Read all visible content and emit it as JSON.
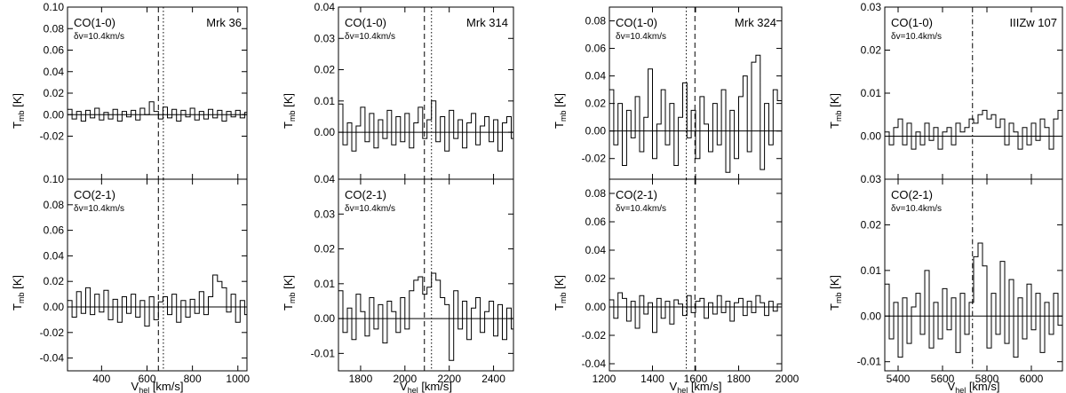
{
  "chart_data": [
    {
      "type": "line",
      "title": "Mrk 36",
      "xlabel": "Vhel [km/s]",
      "ylabel": "Tmb [K]",
      "xlim": [
        250,
        1040
      ],
      "xticks": [
        "400",
        "600",
        "800",
        "1000"
      ],
      "xtick_values": [
        400,
        600,
        800,
        1000
      ],
      "vlines": [
        {
          "x": 650,
          "style": "dashed"
        },
        {
          "x": 672,
          "style": "dotted"
        }
      ],
      "panels": [
        {
          "line": "CO(1-0)",
          "resolution": "δv=10.4km/s",
          "ylim": [
            -0.06,
            0.1
          ],
          "yticks": [
            "0.10",
            "0.08",
            "0.06",
            "0.04",
            "0.02",
            "0.00",
            "-0.02"
          ],
          "ytick_values": [
            0.1,
            0.08,
            0.06,
            0.04,
            0.02,
            0.0,
            -0.02
          ],
          "x": [
            250,
            270,
            290,
            310,
            330,
            350,
            370,
            390,
            410,
            430,
            450,
            470,
            490,
            510,
            530,
            550,
            570,
            590,
            610,
            630,
            650,
            670,
            690,
            710,
            730,
            750,
            770,
            790,
            810,
            830,
            850,
            870,
            890,
            910,
            930,
            950,
            970,
            990,
            1010,
            1030
          ],
          "values": [
            0.005,
            -0.004,
            0.003,
            -0.006,
            0.004,
            -0.003,
            0.006,
            -0.005,
            0.002,
            -0.004,
            0.005,
            -0.006,
            0.003,
            -0.002,
            0.004,
            -0.005,
            0.006,
            0.0,
            0.012,
            0.003,
            -0.004,
            0.007,
            -0.003,
            0.005,
            -0.006,
            0.004,
            -0.002,
            0.006,
            -0.005,
            0.003,
            -0.004,
            0.005,
            -0.003,
            0.004,
            -0.006,
            0.003,
            -0.002,
            0.004,
            -0.003,
            0.002
          ]
        },
        {
          "line": "CO(2-1)",
          "resolution": "δv=10.4km/s",
          "ylim": [
            -0.05,
            0.1
          ],
          "yticks": [
            "0.10",
            "0.08",
            "0.06",
            "0.04",
            "0.02",
            "0.00",
            "-0.02",
            "-0.04"
          ],
          "ytick_values": [
            0.1,
            0.08,
            0.06,
            0.04,
            0.02,
            0.0,
            -0.02,
            -0.04
          ],
          "x": [
            250,
            270,
            290,
            310,
            330,
            350,
            370,
            390,
            410,
            430,
            450,
            470,
            490,
            510,
            530,
            550,
            570,
            590,
            610,
            630,
            650,
            670,
            690,
            710,
            730,
            750,
            770,
            790,
            810,
            830,
            850,
            870,
            890,
            910,
            930,
            950,
            970,
            990,
            1010,
            1030
          ],
          "values": [
            0.005,
            -0.008,
            0.012,
            -0.005,
            0.015,
            -0.006,
            0.01,
            -0.004,
            0.013,
            -0.01,
            0.006,
            -0.012,
            0.008,
            -0.005,
            0.01,
            -0.008,
            0.005,
            -0.015,
            0.008,
            -0.01,
            0.004,
            0.008,
            -0.006,
            0.01,
            -0.012,
            0.005,
            -0.008,
            0.006,
            -0.005,
            0.012,
            -0.006,
            0.008,
            0.025,
            0.02,
            0.015,
            -0.004,
            0.01,
            -0.012,
            0.005,
            -0.006
          ]
        }
      ]
    },
    {
      "type": "line",
      "title": "Mrk 314",
      "xlabel": "Vhel [km/s]",
      "ylabel": "Tmb [K]",
      "xlim": [
        1700,
        2490
      ],
      "xticks": [
        "1800",
        "2000",
        "2200",
        "2400"
      ],
      "xtick_values": [
        1800,
        2000,
        2200,
        2400
      ],
      "vlines": [
        {
          "x": 2088,
          "style": "dashed"
        },
        {
          "x": 2120,
          "style": "dotted"
        }
      ],
      "panels": [
        {
          "line": "CO(1-0)",
          "resolution": "δv=10.4km/s",
          "ylim": [
            -0.015,
            0.04
          ],
          "yticks": [
            "0.04",
            "0.03",
            "0.02",
            "0.01",
            "0.00"
          ],
          "ytick_values": [
            0.04,
            0.03,
            0.02,
            0.01,
            0.0
          ],
          "x": [
            1700,
            1720,
            1740,
            1760,
            1780,
            1800,
            1820,
            1840,
            1860,
            1880,
            1900,
            1920,
            1940,
            1960,
            1980,
            2000,
            2020,
            2040,
            2060,
            2080,
            2100,
            2120,
            2140,
            2160,
            2180,
            2200,
            2220,
            2240,
            2260,
            2280,
            2300,
            2320,
            2340,
            2360,
            2380,
            2400,
            2420,
            2440,
            2460,
            2480
          ],
          "values": [
            0.009,
            -0.004,
            0.003,
            -0.006,
            0.002,
            0.008,
            -0.003,
            0.006,
            -0.005,
            0.004,
            -0.002,
            0.007,
            -0.004,
            0.005,
            -0.003,
            0.006,
            -0.005,
            0.003,
            0.008,
            -0.002,
            0.004,
            0.01,
            -0.003,
            0.005,
            -0.006,
            0.007,
            -0.002,
            0.004,
            -0.005,
            0.003,
            0.006,
            -0.004,
            0.002,
            0.005,
            -0.003,
            0.004,
            -0.006,
            0.003,
            0.005,
            -0.002
          ]
        },
        {
          "line": "CO(2-1)",
          "resolution": "δv=10.4km/s",
          "ylim": [
            -0.015,
            0.04
          ],
          "yticks": [
            "0.04",
            "0.03",
            "0.02",
            "0.01",
            "0.00",
            "-0.01"
          ],
          "ytick_values": [
            0.04,
            0.03,
            0.02,
            0.01,
            0.0,
            -0.01
          ],
          "x": [
            1700,
            1720,
            1740,
            1760,
            1780,
            1800,
            1820,
            1840,
            1860,
            1880,
            1900,
            1920,
            1940,
            1960,
            1980,
            2000,
            2020,
            2040,
            2060,
            2080,
            2100,
            2120,
            2140,
            2160,
            2180,
            2200,
            2220,
            2240,
            2260,
            2280,
            2300,
            2320,
            2340,
            2360,
            2380,
            2400,
            2420,
            2440,
            2460,
            2480
          ],
          "values": [
            0.008,
            -0.004,
            0.003,
            -0.006,
            0.007,
            0.002,
            -0.005,
            0.006,
            -0.003,
            0.004,
            -0.007,
            0.005,
            0.002,
            -0.004,
            0.006,
            -0.003,
            0.008,
            0.011,
            0.012,
            0.007,
            0.009,
            0.013,
            0.011,
            0.006,
            0.004,
            -0.012,
            0.008,
            -0.003,
            0.005,
            -0.006,
            0.003,
            0.006,
            -0.004,
            0.002,
            0.005,
            -0.005,
            0.004,
            -0.006,
            0.003,
            -0.003
          ]
        }
      ]
    },
    {
      "type": "line",
      "title": "Mrk 324",
      "xlabel": "Vhel [km/s]",
      "ylabel": "Tmb [K]",
      "xlim": [
        1200,
        2000
      ],
      "xticks": [
        "1200",
        "1400",
        "1600",
        "1800",
        "2000"
      ],
      "xtick_values": [
        1200,
        1400,
        1600,
        1800,
        2000
      ],
      "vlines": [
        {
          "x": 1557,
          "style": "dotted"
        },
        {
          "x": 1597,
          "style": "dashed"
        }
      ],
      "panels": [
        {
          "line": "CO(1-0)",
          "resolution": "δv=10.4km/s",
          "ylim": [
            -0.035,
            0.09
          ],
          "yticks": [
            "0.08",
            "0.06",
            "0.04",
            "0.02",
            "0.00",
            "-0.02"
          ],
          "ytick_values": [
            0.08,
            0.06,
            0.04,
            0.02,
            0.0,
            -0.02
          ],
          "x": [
            1200,
            1220,
            1240,
            1260,
            1280,
            1300,
            1320,
            1340,
            1360,
            1380,
            1400,
            1420,
            1440,
            1460,
            1480,
            1500,
            1520,
            1540,
            1560,
            1580,
            1600,
            1620,
            1640,
            1660,
            1680,
            1700,
            1720,
            1740,
            1760,
            1780,
            1800,
            1820,
            1840,
            1860,
            1880,
            1900,
            1920,
            1940,
            1960,
            1980
          ],
          "values": [
            0.03,
            -0.01,
            0.02,
            -0.025,
            0.015,
            -0.005,
            0.025,
            -0.015,
            0.01,
            0.045,
            -0.02,
            0.005,
            0.03,
            -0.01,
            0.02,
            -0.025,
            0.01,
            0.035,
            -0.005,
            0.015,
            -0.02,
            0.025,
            0.005,
            -0.015,
            0.02,
            -0.01,
            0.03,
            -0.03,
            0.015,
            -0.02,
            0.025,
            0.04,
            -0.015,
            0.05,
            0.055,
            -0.028,
            0.02,
            -0.01,
            0.03,
            0.022
          ]
        },
        {
          "line": "CO(2-1)",
          "resolution": "δv=10.4km/s",
          "ylim": [
            -0.045,
            0.09
          ],
          "yticks": [
            "0.08",
            "0.06",
            "0.04",
            "0.02",
            "0.00",
            "-0.02",
            "-0.04"
          ],
          "ytick_values": [
            0.08,
            0.06,
            0.04,
            0.02,
            0.0,
            -0.02,
            -0.04
          ],
          "x": [
            1200,
            1220,
            1240,
            1260,
            1280,
            1300,
            1320,
            1340,
            1360,
            1380,
            1400,
            1420,
            1440,
            1460,
            1480,
            1500,
            1520,
            1540,
            1560,
            1580,
            1600,
            1620,
            1640,
            1660,
            1680,
            1700,
            1720,
            1740,
            1760,
            1780,
            1800,
            1820,
            1840,
            1860,
            1880,
            1900,
            1920,
            1940,
            1960,
            1980
          ],
          "values": [
            0.005,
            -0.008,
            0.01,
            0.006,
            -0.01,
            0.004,
            -0.015,
            0.008,
            -0.005,
            0.003,
            -0.018,
            0.006,
            -0.008,
            0.004,
            -0.012,
            0.005,
            0.002,
            -0.006,
            0.008,
            -0.004,
            0.004,
            0.006,
            -0.008,
            0.003,
            -0.005,
            0.008,
            -0.004,
            0.004,
            -0.01,
            0.003,
            0.006,
            -0.006,
            0.004,
            -0.004,
            0.008,
            0.003,
            -0.006,
            0.004,
            -0.003,
            0.002
          ]
        }
      ]
    },
    {
      "type": "line",
      "title": "IIIZw 107",
      "xlabel": "Vhel [km/s]",
      "ylabel": "Tmb [K]",
      "xlim": [
        5340,
        6140
      ],
      "xticks": [
        "5400",
        "5600",
        "5800",
        "6000"
      ],
      "xtick_values": [
        5400,
        5600,
        5800,
        6000
      ],
      "vlines": [
        {
          "x": 5735,
          "style": "dashdot"
        }
      ],
      "panels": [
        {
          "line": "CO(1-0)",
          "resolution": "δv=10.4km/s",
          "ylim": [
            -0.01,
            0.03
          ],
          "yticks": [
            "0.03",
            "0.02",
            "0.01",
            "0.00"
          ],
          "ytick_values": [
            0.03,
            0.02,
            0.01,
            0.0
          ],
          "x": [
            5340,
            5360,
            5380,
            5400,
            5420,
            5440,
            5460,
            5480,
            5500,
            5520,
            5540,
            5560,
            5580,
            5600,
            5620,
            5640,
            5660,
            5680,
            5700,
            5720,
            5740,
            5760,
            5780,
            5800,
            5820,
            5840,
            5860,
            5880,
            5900,
            5920,
            5940,
            5960,
            5980,
            6000,
            6020,
            6040,
            6060,
            6080,
            6100,
            6120
          ],
          "values": [
            0.001,
            -0.002,
            0.002,
            0.004,
            -0.002,
            0.003,
            -0.003,
            0.001,
            -0.002,
            0.003,
            -0.001,
            0.002,
            -0.003,
            0.001,
            0.002,
            -0.002,
            0.003,
            0.001,
            0.002,
            0.004,
            0.003,
            0.005,
            0.006,
            0.004,
            0.005,
            0.002,
            0.004,
            -0.002,
            0.003,
            0.001,
            -0.003,
            0.002,
            -0.002,
            0.003,
            -0.001,
            0.004,
            0.002,
            -0.003,
            0.004,
            0.006
          ]
        },
        {
          "line": "CO(2-1)",
          "resolution": "δv=10.4km/s",
          "ylim": [
            -0.012,
            0.03
          ],
          "yticks": [
            "0.03",
            "0.02",
            "0.01",
            "0.00",
            "-0.01"
          ],
          "ytick_values": [
            0.03,
            0.02,
            0.01,
            0.0,
            -0.01
          ],
          "x": [
            5340,
            5360,
            5380,
            5400,
            5420,
            5440,
            5460,
            5480,
            5500,
            5520,
            5540,
            5560,
            5580,
            5600,
            5620,
            5640,
            5660,
            5680,
            5700,
            5720,
            5740,
            5760,
            5780,
            5800,
            5820,
            5840,
            5860,
            5880,
            5900,
            5920,
            5940,
            5960,
            5980,
            6000,
            6020,
            6040,
            6060,
            6080,
            6100,
            6120
          ],
          "values": [
            0.007,
            -0.005,
            0.003,
            -0.009,
            0.004,
            -0.006,
            0.002,
            0.005,
            -0.004,
            0.01,
            -0.007,
            0.003,
            -0.005,
            0.006,
            -0.003,
            0.004,
            -0.008,
            0.005,
            -0.004,
            0.003,
            0.013,
            0.016,
            0.011,
            -0.007,
            0.005,
            -0.004,
            0.012,
            -0.006,
            0.008,
            -0.009,
            0.004,
            -0.005,
            0.007,
            -0.003,
            0.005,
            -0.008,
            0.003,
            -0.004,
            0.005,
            -0.002
          ]
        }
      ]
    }
  ]
}
